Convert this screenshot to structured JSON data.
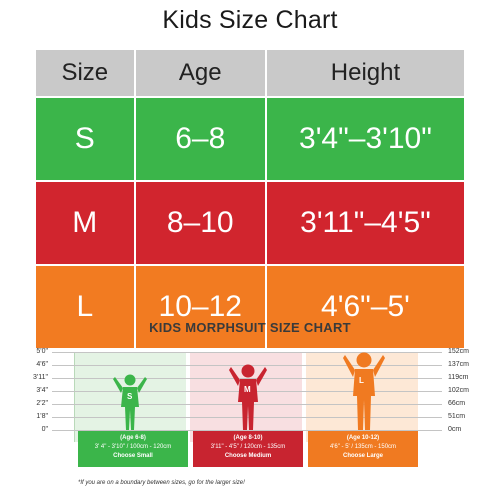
{
  "title": "Kids Size Chart",
  "table": {
    "headers": [
      "Size",
      "Age",
      "Height"
    ],
    "rows": [
      {
        "size": "S",
        "age": "6–8",
        "height": "3'4\"–3'10\""
      },
      {
        "size": "M",
        "age": "8–10",
        "height": "3'11\"–4'5\""
      },
      {
        "size": "L",
        "age": "10–12",
        "height": "4'6\"–5'"
      }
    ]
  },
  "morphsuit_chart": {
    "title": "KIDS MORPHSUIT SIZE CHART",
    "left_labels": [
      "5'0\"",
      "4'6\"",
      "3'11\"",
      "3'4\"",
      "2'2\"",
      "1'8\"",
      "0\""
    ],
    "right_labels": [
      "152cm",
      "137cm",
      "119cm",
      "102cm",
      "66cm",
      "51cm",
      "0cm"
    ],
    "figures": [
      {
        "letter": "S",
        "age": "(Age 6-8)",
        "range": "3' 4\" - 3'10\" / 100cm - 120cm",
        "choose": "Choose Small"
      },
      {
        "letter": "M",
        "age": "(Age 8-10)",
        "range": "3'11\" - 4'5\" / 120cm - 135cm",
        "choose": "Choose Medium"
      },
      {
        "letter": "L",
        "age": "(Age 10-12)",
        "range": "4'6\" - 5' / 135cm - 150cm",
        "choose": "Choose Large"
      }
    ],
    "footnote": "*If you are on a boundary between sizes, go for the larger size!"
  },
  "colors": {
    "small": "#3bb54a",
    "medium": "#d1252e",
    "large": "#f27b21",
    "header": "#c9c9c9"
  }
}
